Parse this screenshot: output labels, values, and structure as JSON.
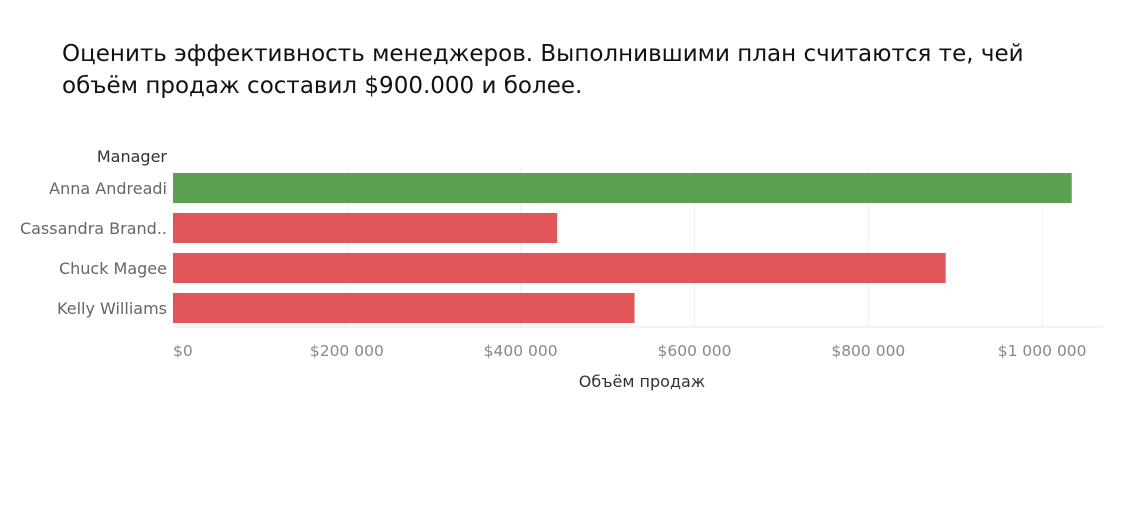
{
  "page": {
    "title": "Оценить эффективность менеджеров. Выполнившими план считаются те, чей объём продаж составил $900.000 и более."
  },
  "chart_data": {
    "type": "bar",
    "orientation": "horizontal",
    "category_title": "Manager",
    "xlabel": "Объём продаж",
    "categories": [
      "Anna Andreadi",
      "Cassandra Brand..",
      "Chuck Magee",
      "Kelly Williams"
    ],
    "values": [
      1034000,
      442000,
      889000,
      531000
    ],
    "threshold": 900000,
    "xlim": [
      0,
      1070000
    ],
    "xticks": [
      0,
      200000,
      400000,
      600000,
      800000,
      1000000
    ],
    "xtick_labels": [
      "$0",
      "$200 000",
      "$400 000",
      "$600 000",
      "$800 000",
      "$1 000 000"
    ],
    "colors": {
      "met": "#59a14f",
      "not_met": "#e15759"
    },
    "grid": true,
    "legend": "none"
  }
}
